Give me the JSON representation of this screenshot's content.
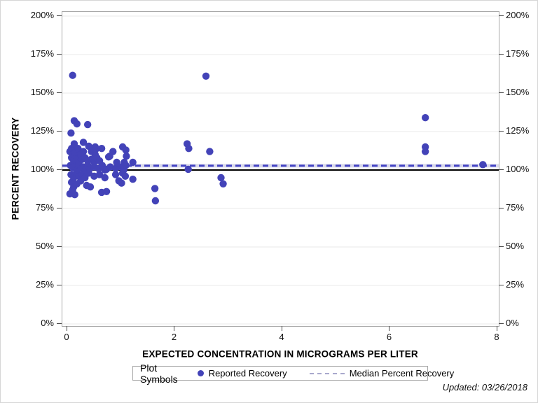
{
  "figure": {
    "updated_label": "Updated: 03/26/2018"
  },
  "legend": {
    "title": "Plot Symbols",
    "entries": [
      {
        "symbol": "dot",
        "label": "Reported Recovery"
      },
      {
        "symbol": "dashed-line",
        "label": "Median Percent Recovery"
      }
    ]
  },
  "chart_data": {
    "type": "scatter",
    "title": "",
    "xlabel": "EXPECTED CONCENTRATION IN MICROGRAMS PER LITER",
    "ylabel": "PERCENT RECOVERY",
    "xlim": [
      -0.1,
      8.05
    ],
    "ylim": [
      0,
      200
    ],
    "x_ticks": [
      0,
      2,
      4,
      6,
      8
    ],
    "y_ticks": [
      0,
      25,
      50,
      75,
      100,
      125,
      150,
      175,
      200
    ],
    "y_tick_suffix": "%",
    "grid": "horizontal-only",
    "legend_position": "bottom",
    "colors": {
      "marker": "#4343b8",
      "median_line": "#4444c4",
      "median_band": "#d9d9ea",
      "reference_line": "#000000",
      "gridline": "#e9e9e9",
      "frame": "#a8a8a8",
      "legend_dash": "#a9a9cd"
    },
    "median_percent_recovery": 102.8,
    "reference_value": 100,
    "series": [
      {
        "name": "Reported Recovery",
        "marker": "filled-circle",
        "points": [
          [
            0.05,
            112
          ],
          [
            0.05,
            84.5
          ],
          [
            0.06,
            103
          ],
          [
            0.07,
            124
          ],
          [
            0.07,
            97
          ],
          [
            0.08,
            114
          ],
          [
            0.08,
            108
          ],
          [
            0.08,
            92
          ],
          [
            0.1,
            161.5
          ],
          [
            0.1,
            110
          ],
          [
            0.1,
            101.5
          ],
          [
            0.1,
            87
          ],
          [
            0.12,
            106
          ],
          [
            0.12,
            95
          ],
          [
            0.12,
            89
          ],
          [
            0.13,
            132
          ],
          [
            0.13,
            117
          ],
          [
            0.14,
            102
          ],
          [
            0.14,
            84
          ],
          [
            0.15,
            111
          ],
          [
            0.17,
            98
          ],
          [
            0.18,
            130
          ],
          [
            0.18,
            107
          ],
          [
            0.18,
            100
          ],
          [
            0.18,
            91
          ],
          [
            0.2,
            114
          ],
          [
            0.22,
            105
          ],
          [
            0.22,
            103
          ],
          [
            0.22,
            96
          ],
          [
            0.25,
            110
          ],
          [
            0.25,
            93
          ],
          [
            0.26,
            101
          ],
          [
            0.28,
            107
          ],
          [
            0.28,
            97
          ],
          [
            0.3,
            118
          ],
          [
            0.3,
            112
          ],
          [
            0.3,
            102
          ],
          [
            0.33,
            108
          ],
          [
            0.33,
            95
          ],
          [
            0.34,
            100
          ],
          [
            0.36,
            90
          ],
          [
            0.38,
            129.5
          ],
          [
            0.38,
            106
          ],
          [
            0.38,
            103
          ],
          [
            0.4,
            115.5
          ],
          [
            0.4,
            98
          ],
          [
            0.42,
            101
          ],
          [
            0.43,
            89
          ],
          [
            0.45,
            112
          ],
          [
            0.45,
            107
          ],
          [
            0.5,
            105
          ],
          [
            0.5,
            102
          ],
          [
            0.5,
            96
          ],
          [
            0.51,
            106
          ],
          [
            0.52,
            115
          ],
          [
            0.52,
            110
          ],
          [
            0.53,
            113.5
          ],
          [
            0.55,
            108
          ],
          [
            0.58,
            101
          ],
          [
            0.6,
            106
          ],
          [
            0.6,
            97
          ],
          [
            0.64,
            114
          ],
          [
            0.64,
            85.5
          ],
          [
            0.65,
            103
          ],
          [
            0.7,
            100
          ],
          [
            0.7,
            95
          ],
          [
            0.73,
            100.5
          ],
          [
            0.73,
            86
          ],
          [
            0.77,
            108.5
          ],
          [
            0.79,
            109
          ],
          [
            0.8,
            102
          ],
          [
            0.85,
            112
          ],
          [
            0.9,
            101
          ],
          [
            0.9,
            97
          ],
          [
            0.92,
            105
          ],
          [
            0.96,
            93
          ],
          [
            1.0,
            102
          ],
          [
            1.01,
            91.5
          ],
          [
            1.03,
            115
          ],
          [
            1.03,
            98
          ],
          [
            1.05,
            100
          ],
          [
            1.06,
            105
          ],
          [
            1.08,
            96
          ],
          [
            1.09,
            113
          ],
          [
            1.09,
            103
          ],
          [
            1.1,
            109
          ],
          [
            1.22,
            105
          ],
          [
            1.22,
            94
          ],
          [
            1.63,
            88
          ],
          [
            1.64,
            80
          ],
          [
            2.23,
            117
          ],
          [
            2.25,
            100.5
          ],
          [
            2.26,
            114
          ],
          [
            2.58,
            161
          ],
          [
            2.65,
            112
          ],
          [
            2.86,
            95
          ],
          [
            2.9,
            91
          ],
          [
            6.66,
            134
          ],
          [
            6.66,
            115
          ],
          [
            6.66,
            112
          ],
          [
            7.73,
            103.5
          ]
        ]
      },
      {
        "name": "Median Percent Recovery",
        "line_style": "dashed",
        "value": 102.8
      }
    ]
  }
}
